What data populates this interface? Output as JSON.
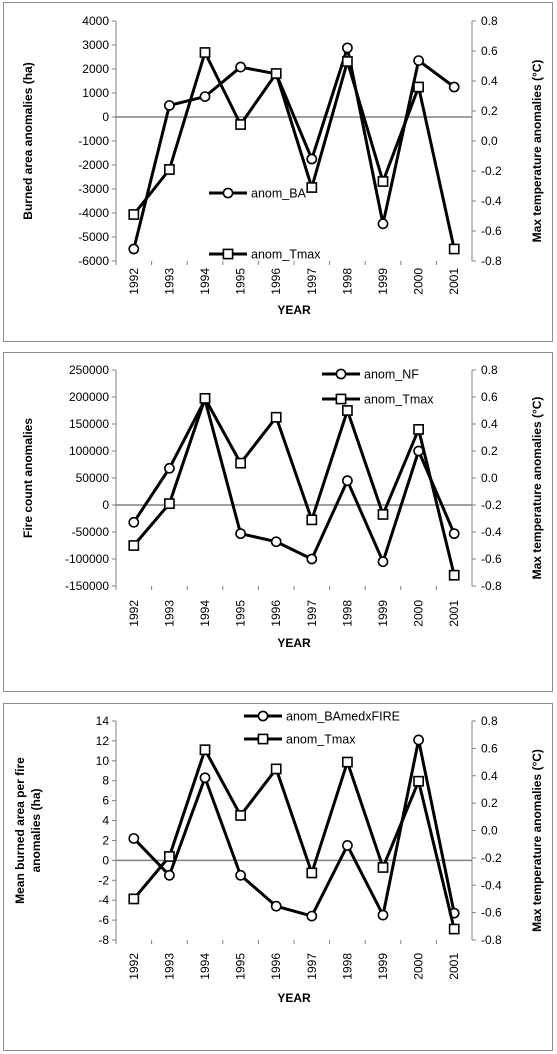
{
  "chart_data": [
    {
      "type": "line",
      "x": [
        "1992",
        "1993",
        "1994",
        "1995",
        "1996",
        "1997",
        "1998",
        "1999",
        "2000",
        "2001"
      ],
      "xlabel": "YEAR",
      "ylabel": "Burned area anomalies (ha)",
      "ylabel_right": "Max temperature anomalies (°C)",
      "ylim": [
        -6000,
        4000
      ],
      "yticks": [
        "4000",
        "3000",
        "2000",
        "1000",
        "0",
        "-1000",
        "-2000",
        "-3000",
        "-4000",
        "-5000",
        "-6000"
      ],
      "ylim_right": [
        -0.8,
        0.8
      ],
      "yticks_right": [
        "0.8",
        "0.6",
        "0.4",
        "0.2",
        "0.0",
        "-0.2",
        "-0.4",
        "-0.6",
        "-0.8"
      ],
      "legend_position": "lower-center",
      "series": [
        {
          "name": "anom_BA",
          "marker": "circle",
          "axis": "left",
          "values": [
            -5500,
            480,
            850,
            2080,
            1800,
            -1750,
            2880,
            -4450,
            2350,
            1250
          ]
        },
        {
          "name": "anom_Tmax",
          "marker": "square",
          "axis": "right",
          "values": [
            -0.49,
            -0.19,
            0.59,
            0.11,
            0.45,
            -0.31,
            0.53,
            -0.27,
            0.36,
            -0.72
          ]
        }
      ]
    },
    {
      "type": "line",
      "x": [
        "1992",
        "1993",
        "1994",
        "1995",
        "1996",
        "1997",
        "1998",
        "1999",
        "2000",
        "2001"
      ],
      "xlabel": "YEAR",
      "ylabel": "Fire count anomalies",
      "ylabel_right": "Max temperature anomalies (°C)",
      "ylim": [
        -150000,
        250000
      ],
      "yticks": [
        "250000",
        "200000",
        "150000",
        "100000",
        "50000",
        "0",
        "-50000",
        "-100000",
        "-150000"
      ],
      "ylim_right": [
        -0.8,
        0.8
      ],
      "yticks_right": [
        "0.8",
        "0.6",
        "0.4",
        "0.2",
        "0.0",
        "-0.2",
        "-0.4",
        "-0.6",
        "-0.8"
      ],
      "legend_position": "top-right",
      "series": [
        {
          "name": "anom_NF",
          "marker": "circle",
          "axis": "left",
          "values": [
            -32000,
            68000,
            195000,
            -53000,
            -68000,
            -100000,
            45000,
            -105000,
            100000,
            -53000
          ]
        },
        {
          "name": "anom_Tmax",
          "marker": "square",
          "axis": "right",
          "values": [
            -0.5,
            -0.19,
            0.59,
            0.11,
            0.45,
            -0.31,
            0.5,
            -0.27,
            0.36,
            -0.72
          ]
        }
      ]
    },
    {
      "type": "line",
      "x": [
        "1992",
        "1993",
        "1994",
        "1995",
        "1996",
        "1997",
        "1998",
        "1999",
        "2000",
        "2001"
      ],
      "xlabel": "YEAR",
      "ylabel": "Mean burned area per fire anomalies (ha)",
      "ylabel_right": "Max temperature anomalies (°C)",
      "ylim": [
        -8,
        14
      ],
      "yticks": [
        "14",
        "12",
        "10",
        "8",
        "6",
        "4",
        "2",
        "0",
        "-2",
        "-4",
        "-6",
        "-8"
      ],
      "ylim_right": [
        -0.8,
        0.8
      ],
      "yticks_right": [
        "0.8",
        "0.6",
        "0.4",
        "0.2",
        "0.0",
        "-0.2",
        "-0.4",
        "-0.6",
        "-0.8"
      ],
      "legend_position": "top-center",
      "series": [
        {
          "name": "anom_BAmedxFIRE",
          "marker": "circle",
          "axis": "left",
          "values": [
            2.2,
            -1.5,
            8.3,
            -1.5,
            -4.6,
            -5.6,
            1.5,
            -5.5,
            12.1,
            -5.3
          ]
        },
        {
          "name": "anom_Tmax",
          "marker": "square",
          "axis": "right",
          "values": [
            -0.5,
            -0.19,
            0.59,
            0.11,
            0.45,
            -0.31,
            0.5,
            -0.27,
            0.36,
            -0.72
          ]
        }
      ]
    }
  ]
}
